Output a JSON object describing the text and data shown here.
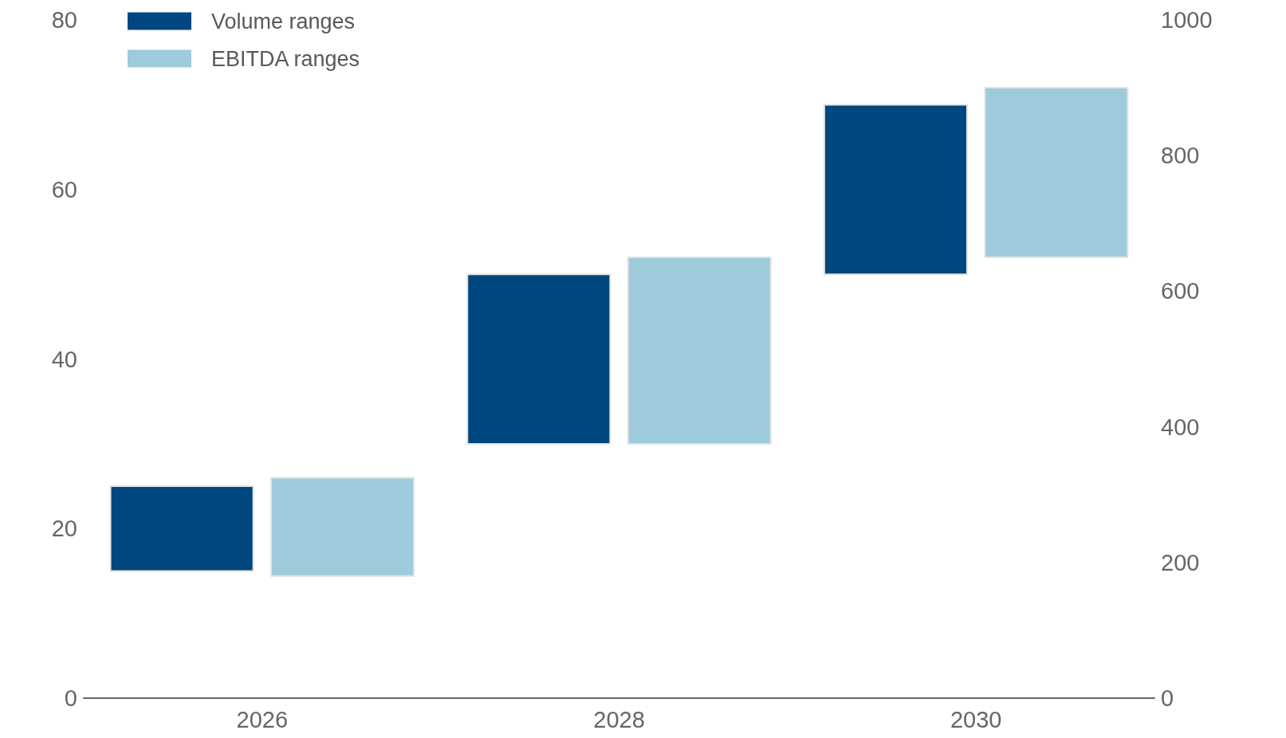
{
  "chart_data": {
    "type": "bar",
    "categories": [
      "2026",
      "2028",
      "2030"
    ],
    "series": [
      {
        "name": "Volume ranges",
        "color": "#00467f",
        "base": [
          15,
          30,
          50
        ],
        "values": [
          10,
          20,
          20
        ]
      },
      {
        "name": "EBITDA ranges",
        "color": "#9dcbdc",
        "axis": "y2",
        "base": [
          180,
          375,
          650
        ],
        "values": [
          145,
          275,
          250
        ]
      }
    ],
    "ylim": [
      0,
      80
    ],
    "yticks": [
      0,
      20,
      40,
      60,
      80
    ],
    "y2lim": [
      0,
      1000
    ],
    "y2ticks": [
      0,
      200,
      400,
      600,
      800,
      1000
    ],
    "grid": false,
    "legend": "top left"
  }
}
